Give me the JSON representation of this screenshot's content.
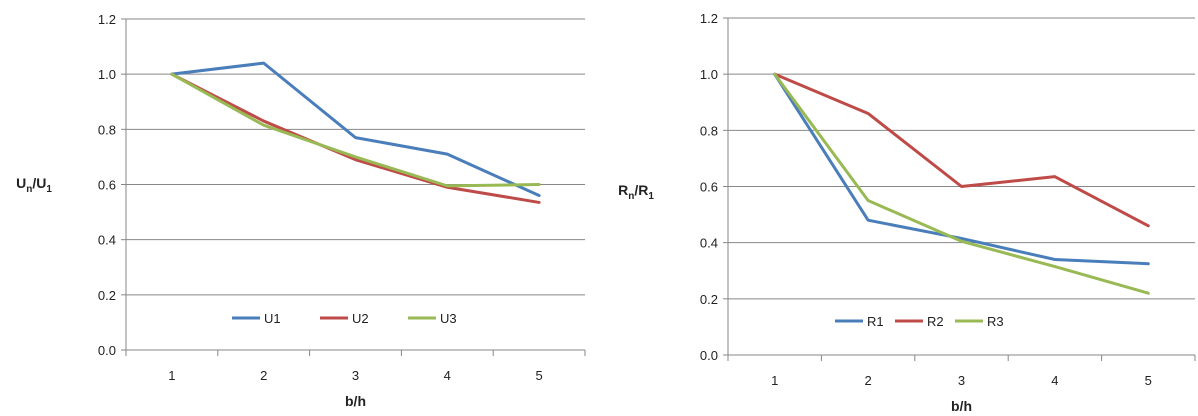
{
  "chart_data": [
    {
      "type": "line",
      "xlabel": "b/h",
      "ylabel": {
        "main": "U",
        "sub1": "n",
        "sep": "/U",
        "sub2": "1"
      },
      "categories": [
        "1",
        "2",
        "3",
        "4",
        "5"
      ],
      "ylim": [
        0.0,
        1.2
      ],
      "yticks": [
        "0.0",
        "0.2",
        "0.4",
        "0.6",
        "0.8",
        "1.0",
        "1.2"
      ],
      "grid": true,
      "legend_position": "bottom-center",
      "series": [
        {
          "name": "U1",
          "color": "#4a7ebb",
          "values": [
            1.0,
            1.04,
            0.77,
            0.71,
            0.56
          ]
        },
        {
          "name": "U2",
          "color": "#be4b48",
          "values": [
            1.0,
            0.83,
            0.69,
            0.59,
            0.535
          ]
        },
        {
          "name": "U3",
          "color": "#98b954",
          "values": [
            1.0,
            0.815,
            0.7,
            0.595,
            0.6
          ]
        }
      ]
    },
    {
      "type": "line",
      "xlabel": "b/h",
      "ylabel": {
        "main": "R",
        "sub1": "n",
        "sep": "/R",
        "sub2": "1"
      },
      "categories": [
        "1",
        "2",
        "3",
        "4",
        "5"
      ],
      "ylim": [
        0.0,
        1.2
      ],
      "yticks": [
        "0.0",
        "0.2",
        "0.4",
        "0.6",
        "0.8",
        "1.0",
        "1.2"
      ],
      "grid": true,
      "legend_position": "bottom-center",
      "series": [
        {
          "name": "R1",
          "color": "#4a7ebb",
          "values": [
            1.0,
            0.48,
            0.415,
            0.34,
            0.325
          ]
        },
        {
          "name": "R2",
          "color": "#be4b48",
          "values": [
            1.0,
            0.86,
            0.6,
            0.635,
            0.46
          ]
        },
        {
          "name": "R3",
          "color": "#98b954",
          "values": [
            1.0,
            0.55,
            0.405,
            0.315,
            0.22
          ]
        }
      ]
    }
  ]
}
